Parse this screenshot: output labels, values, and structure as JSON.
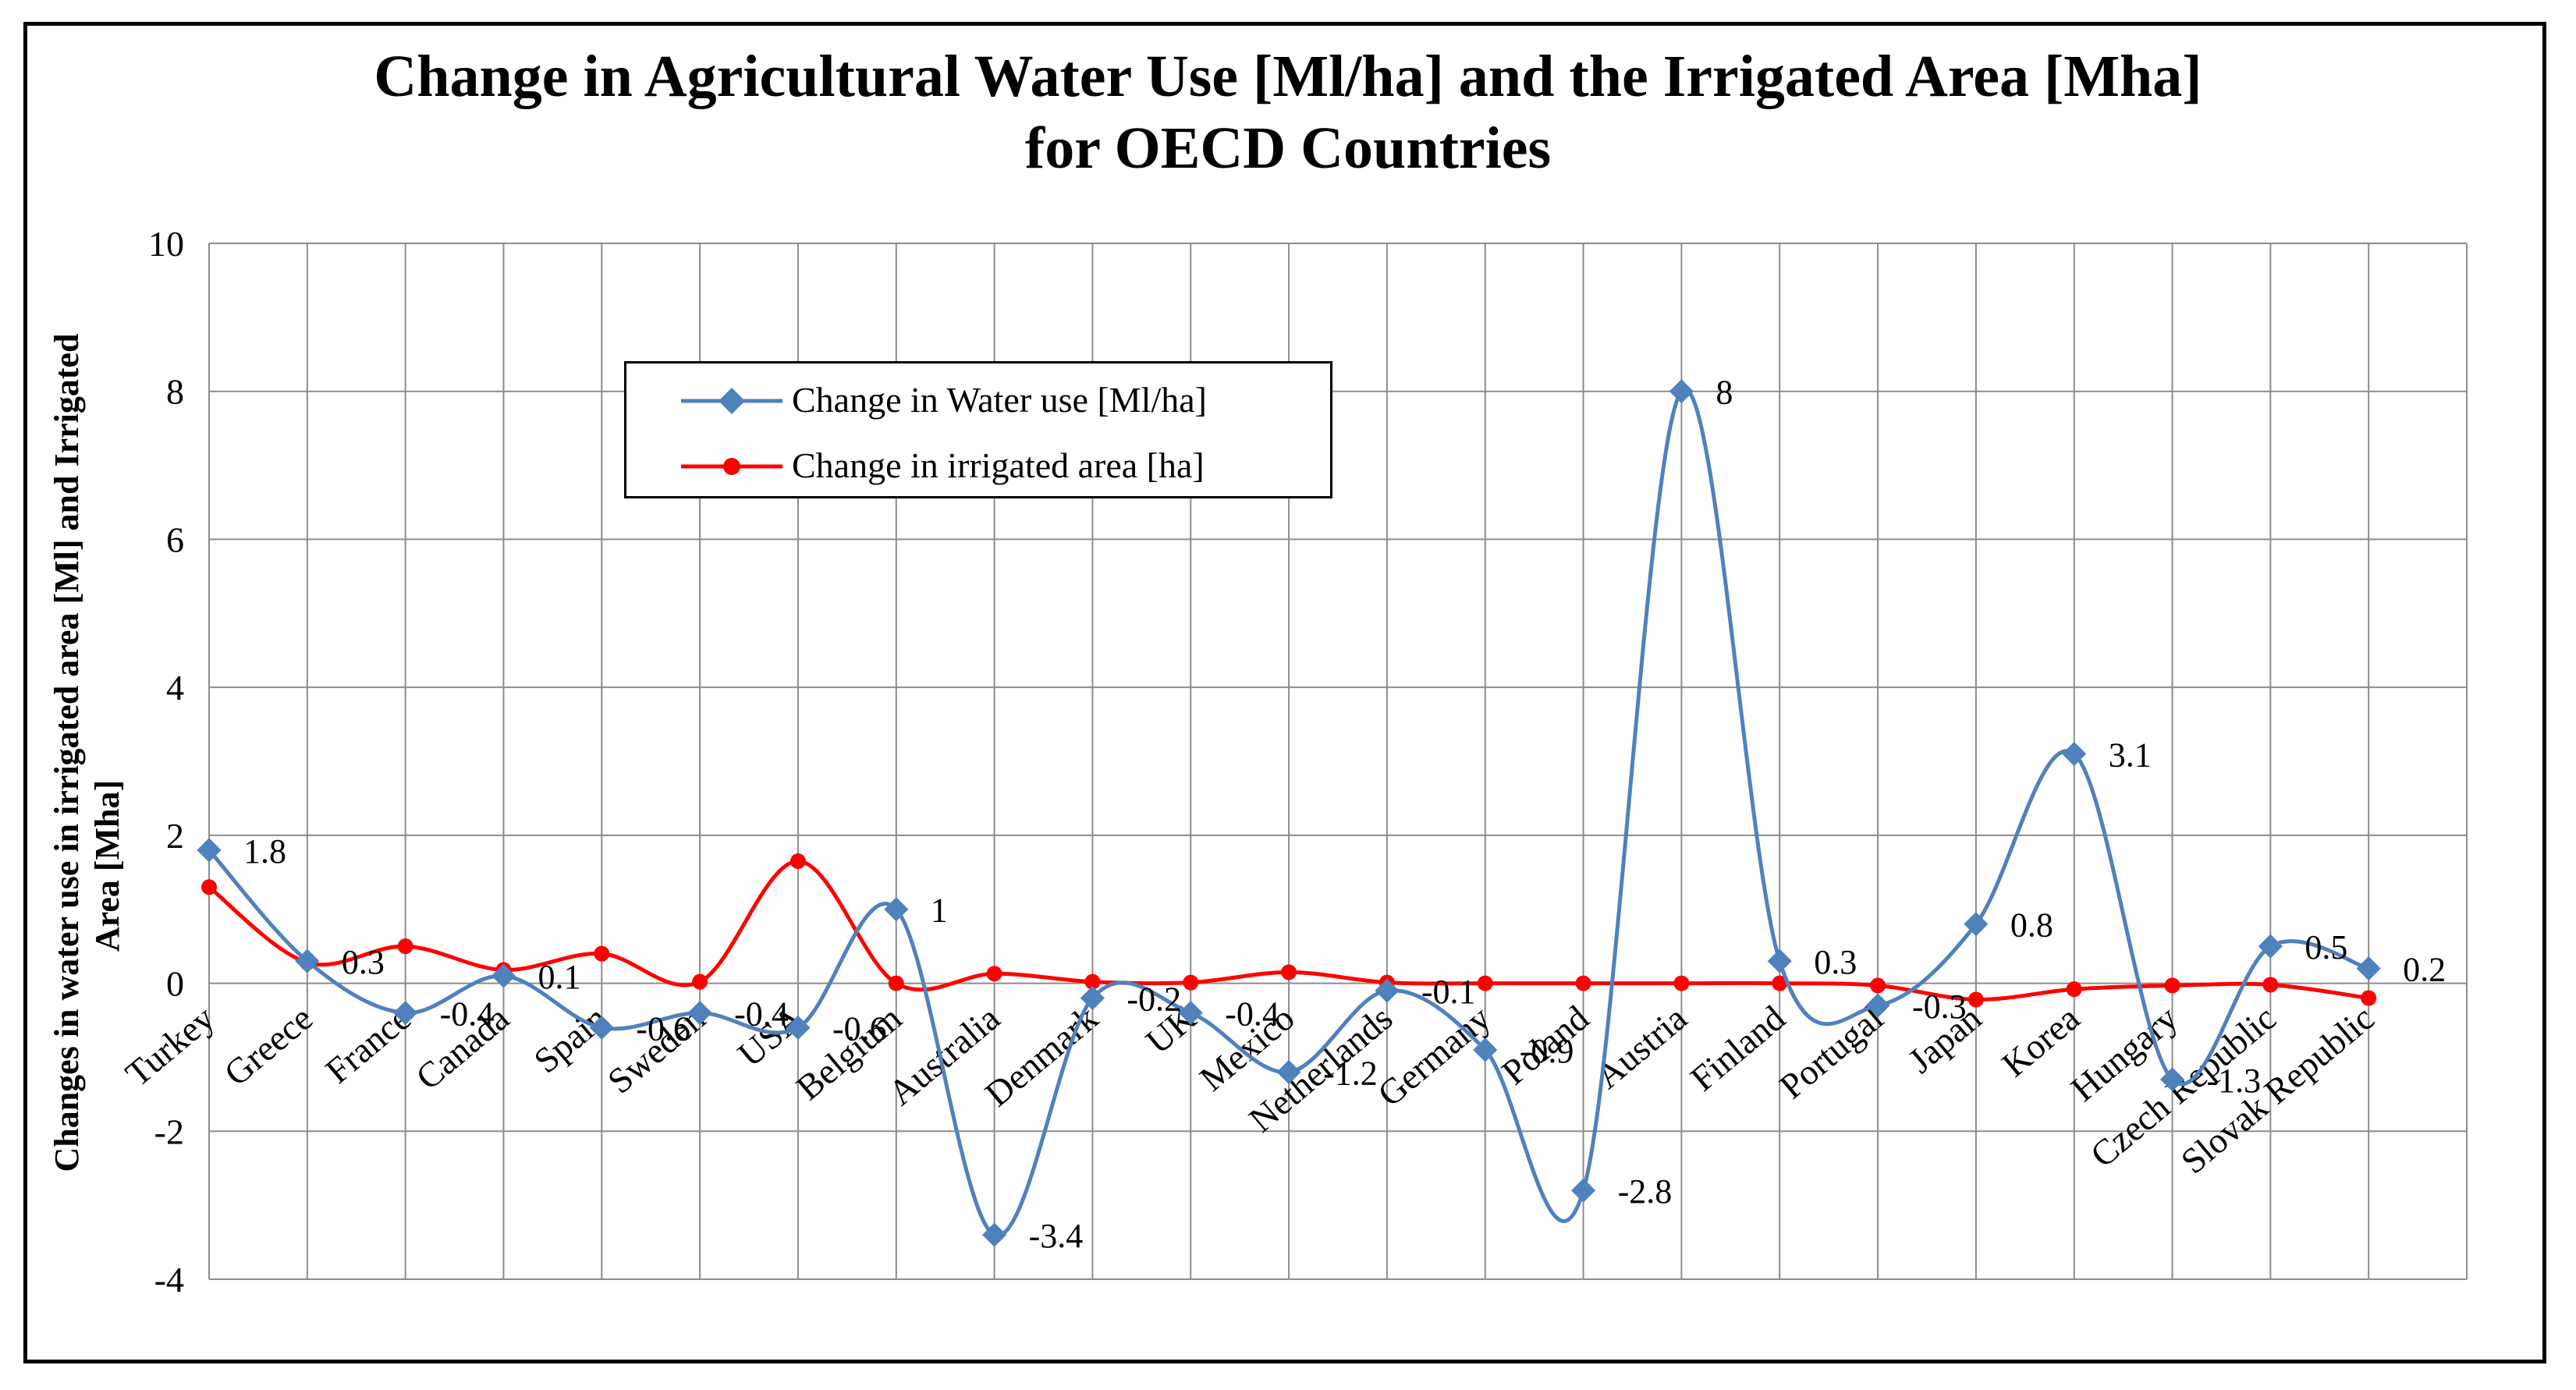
{
  "title": {
    "line1": "Change in Agricultural Water Use [Ml/ha] and the Irrigated Area [Mha]",
    "line2": "for OECD Countries"
  },
  "chart_data": {
    "type": "line",
    "ylabel_line1": "Changes in water use in irrigated area  [Ml] and Irrigated",
    "ylabel_line2": "Area [Mha]",
    "ylim": [
      -4,
      10
    ],
    "yticks": [
      "-4",
      "-2",
      "0",
      "2",
      "4",
      "6",
      "8",
      "10"
    ],
    "grid": true,
    "legend_position": "top-center",
    "categories": [
      "Turkey",
      "Greece",
      "France",
      "Canada",
      "Spain",
      "Sweden",
      "USA",
      "Belgium",
      "Australia",
      "Denmark",
      "UK",
      "Mexico",
      "Netherlands",
      "Germany",
      "Poland",
      "Austria",
      "Finland",
      "Portugal",
      "Japan",
      "Korea",
      "Hungary",
      "Czech Republic",
      "Slovak Republic"
    ],
    "series": [
      {
        "name": "Change in Water use [Ml/ha]",
        "color": "#4F81BD",
        "marker": "diamond",
        "values": [
          1.8,
          0.3,
          -0.4,
          0.1,
          -0.6,
          -0.4,
          -0.6,
          1,
          -3.4,
          -0.2,
          -0.4,
          -1.2,
          -0.1,
          -0.9,
          -2.8,
          8,
          0.3,
          -0.3,
          0.8,
          3.1,
          -1.3,
          0.5,
          0.2
        ],
        "data_labels": [
          "1.8",
          "0.3",
          "-0.4",
          "0.1",
          "-0.6",
          "-0.4",
          "-0.6",
          "1",
          "-3.4",
          "-0.2",
          "-0.4",
          "-1.2",
          "-0.1",
          "-0.9",
          "-2.8",
          "8",
          "0.3",
          "-0.3",
          "0.8",
          "3.1",
          "-1.3",
          "0.5",
          "0.2"
        ]
      },
      {
        "name": "Change in irrigated area [ha]",
        "color": "#FF0000",
        "marker": "circle",
        "values": [
          1.3,
          0.28,
          0.5,
          0.18,
          0.4,
          0.02,
          1.65,
          0.0,
          0.13,
          0.02,
          0.01,
          0.15,
          0.01,
          0.0,
          0.0,
          0.0,
          0.0,
          -0.03,
          -0.22,
          -0.08,
          -0.03,
          -0.02,
          -0.2
        ]
      }
    ]
  }
}
